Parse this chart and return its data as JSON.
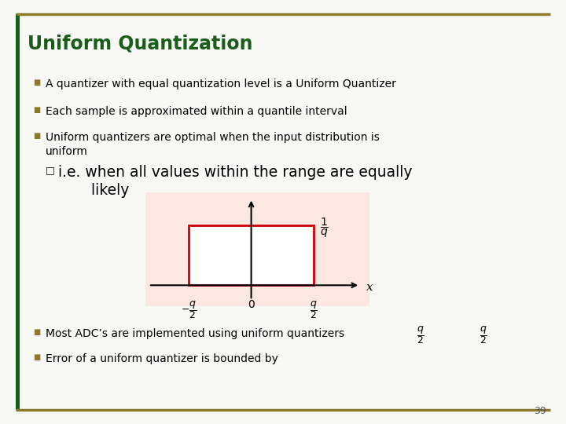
{
  "title": "Uniform Quantization",
  "title_color": "#1a5c1a",
  "title_fontsize": 17,
  "bg_color": "#f8f8f4",
  "border_color": "#8B7A2E",
  "left_bar_color": "#1a5c1a",
  "bullet_color": "#8B7A2E",
  "bullet_points": [
    "A quantizer with equal quantization level is a Uniform Quantizer",
    "Each sample is approximated within a quantile interval",
    "Uniform quantizers are optimal when the input distribution is\nuniform"
  ],
  "sub_bullet": "i.e. when all values within the range are equally\n       likely",
  "bottom_bullets": [
    "Most ADC’s are implemented using uniform quantizers",
    "Error of a uniform quantizer is bounded by"
  ],
  "plot_bg_color": "#fce8e0",
  "rect_color": "#cc0000",
  "page_number": "39",
  "x_label": "x"
}
